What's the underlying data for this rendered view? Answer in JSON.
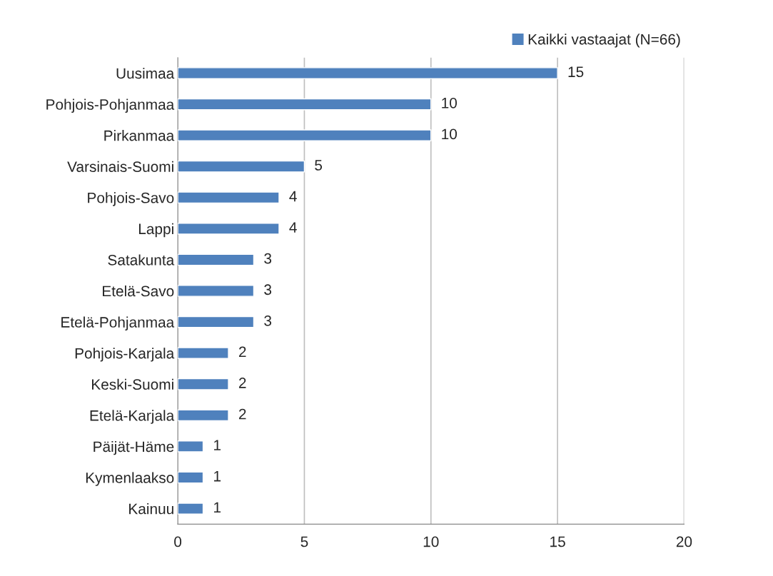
{
  "chart_data": {
    "type": "bar",
    "orientation": "horizontal",
    "categories": [
      "Uusimaa",
      "Pohjois-Pohjanmaa",
      "Pirkanmaa",
      "Varsinais-Suomi",
      "Pohjois-Savo",
      "Lappi",
      "Satakunta",
      "Etelä-Savo",
      "Etelä-Pohjanmaa",
      "Pohjois-Karjala",
      "Keski-Suomi",
      "Etelä-Karjala",
      "Päijät-Häme",
      "Kymenlaakso",
      "Kainuu"
    ],
    "series": [
      {
        "name": "Kaikki vastaajat (N=66)",
        "color": "#4f81bd",
        "values": [
          15,
          10,
          10,
          5,
          4,
          4,
          3,
          3,
          3,
          2,
          2,
          2,
          1,
          1,
          1
        ]
      }
    ],
    "xlim": [
      0,
      20
    ],
    "xticks": [
      0,
      5,
      10,
      15,
      20
    ],
    "grid": "x",
    "legend": "top right",
    "data_labels": true
  }
}
